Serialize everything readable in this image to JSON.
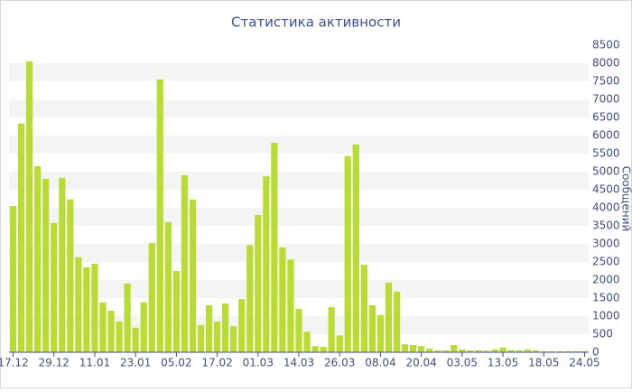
{
  "chart_data": {
    "type": "bar",
    "title": "Статистика активности",
    "y_label": "Сообщений",
    "categories": [
      "17.12",
      null,
      null,
      null,
      null,
      "29.12",
      null,
      null,
      null,
      null,
      "11.01",
      null,
      null,
      null,
      null,
      "23.01",
      null,
      null,
      null,
      null,
      "05.02",
      null,
      null,
      null,
      null,
      "17.02",
      null,
      null,
      null,
      null,
      "01.03",
      null,
      null,
      null,
      null,
      "14.03",
      null,
      null,
      null,
      null,
      "26.03",
      null,
      null,
      null,
      null,
      "08.04",
      null,
      null,
      null,
      null,
      "20.04",
      null,
      null,
      null,
      null,
      "03.05",
      null,
      null,
      null,
      null,
      "13.05",
      null,
      null,
      null,
      null,
      "18.05",
      null,
      null,
      null,
      null,
      "24.05"
    ],
    "values": [
      4050,
      6330,
      8050,
      5150,
      4800,
      3580,
      4830,
      4230,
      2630,
      2350,
      2450,
      1380,
      1150,
      850,
      1900,
      680,
      1380,
      3020,
      7550,
      3600,
      2250,
      4900,
      4230,
      750,
      1300,
      850,
      1350,
      720,
      1470,
      2970,
      3800,
      4870,
      5800,
      2900,
      2570,
      1200,
      570,
      170,
      150,
      1250,
      470,
      5430,
      5750,
      2420,
      1300,
      1030,
      1930,
      1680,
      220,
      200,
      170,
      100,
      50,
      50,
      200,
      80,
      50,
      50,
      40,
      80,
      130,
      60,
      50,
      80,
      50,
      30,
      30,
      30,
      30,
      30,
      30
    ],
    "color": "#b9dc34",
    "ylim": [
      0,
      8500
    ],
    "yticks": [
      0,
      500,
      1000,
      1500,
      2000,
      2500,
      3000,
      3500,
      4000,
      4500,
      5000,
      5500,
      6000,
      6500,
      7000,
      7500,
      8000,
      8500
    ],
    "grid": true
  }
}
